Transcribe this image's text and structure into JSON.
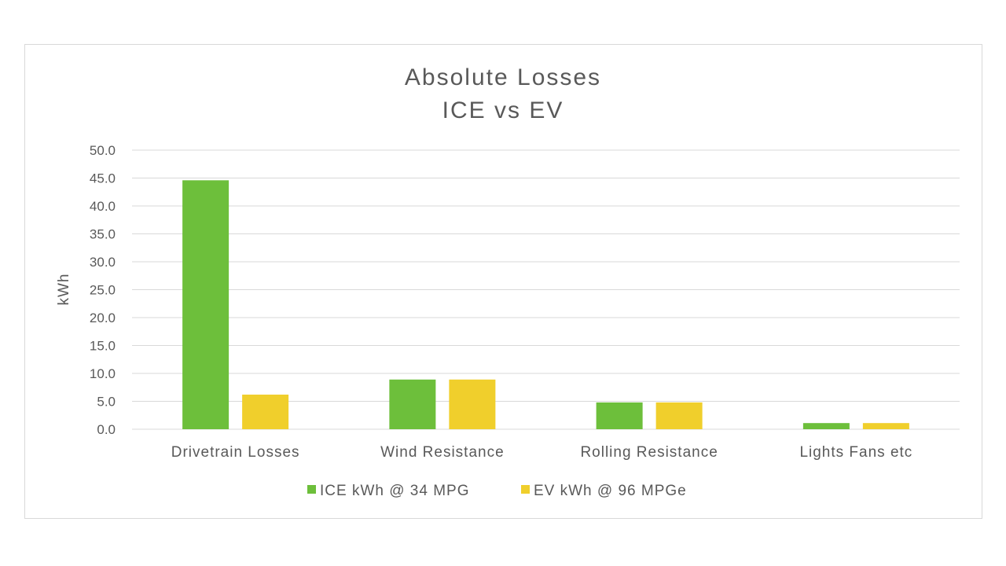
{
  "chart_data": {
    "type": "bar",
    "title": [
      "Absolute Losses",
      "ICE vs EV"
    ],
    "xlabel": "",
    "ylabel": "kWh",
    "categories": [
      "Drivetrain Losses",
      "Wind Resistance",
      "Rolling Resistance",
      "Lights Fans etc"
    ],
    "series": [
      {
        "name": "ICE kWh @ 34 MPG",
        "color": "#6dbf3b",
        "values": [
          44.6,
          8.9,
          4.8,
          1.1
        ]
      },
      {
        "name": "EV kWh @ 96 MPGe",
        "color": "#f0cf2c",
        "values": [
          6.2,
          8.9,
          4.8,
          1.1
        ]
      }
    ],
    "ylim": [
      0,
      50
    ],
    "yticks": [
      "0.0",
      "5.0",
      "10.0",
      "15.0",
      "20.0",
      "25.0",
      "30.0",
      "35.0",
      "40.0",
      "45.0",
      "50.0"
    ],
    "grid": true,
    "legend_position": "bottom"
  }
}
